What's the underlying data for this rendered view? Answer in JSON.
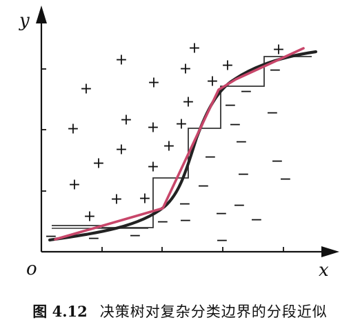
{
  "axes": {
    "y_label": "y",
    "x_label": "x",
    "origin_label": "o"
  },
  "markers": {
    "positive": "+",
    "negative": "−"
  },
  "colors": {
    "ink": "#111111",
    "smooth_curve": "#222222",
    "linear_segments": "#c8466a",
    "staircase": "#333333"
  },
  "caption": {
    "label": "图 4.12",
    "text": "决策树对复杂分类边界的分段近似"
  }
}
